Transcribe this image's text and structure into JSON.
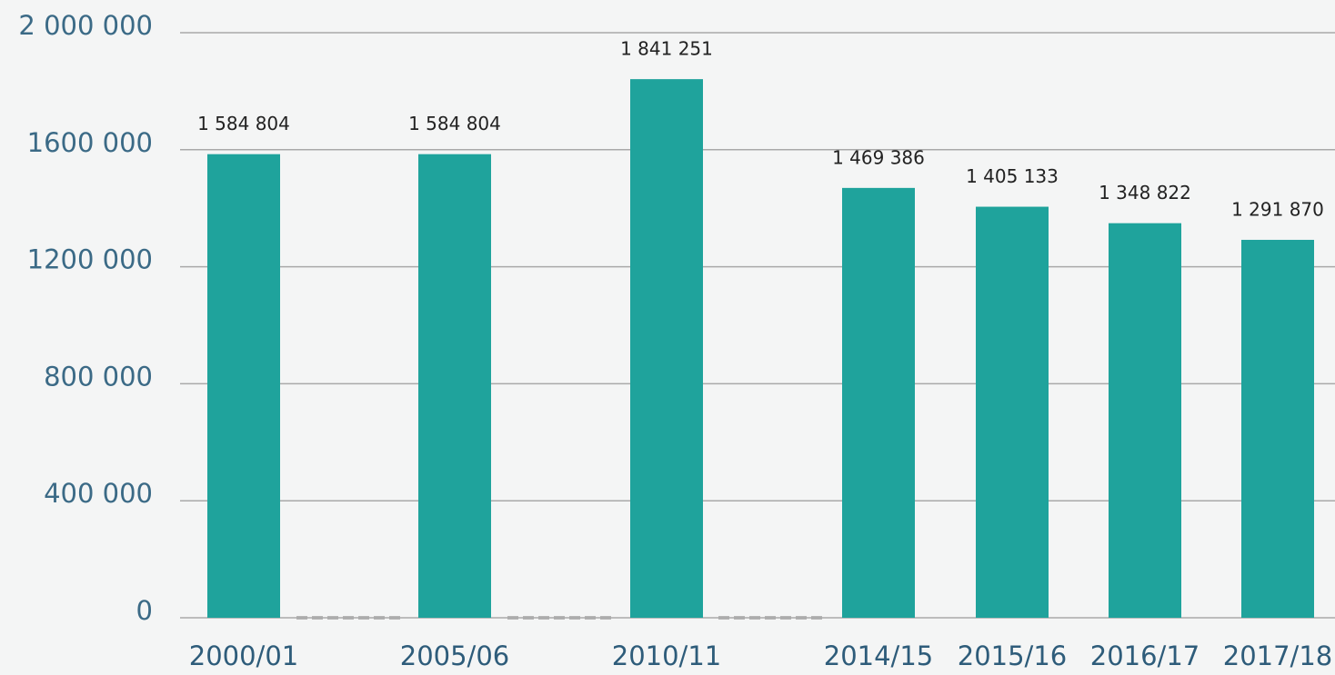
{
  "chart_data": {
    "type": "bar",
    "categories": [
      "2000/01",
      "2005/06",
      "2010/11",
      "2014/15",
      "2015/16",
      "2016/17",
      "2017/18"
    ],
    "values": [
      1584804,
      1584804,
      1841251,
      1469386,
      1405133,
      1348822,
      1291870
    ],
    "value_labels": [
      "1 584 804",
      "1 584 804",
      "1 841 251",
      "1 469 386",
      "1 405 133",
      "1 348 822",
      "1 291 870"
    ],
    "color": "#1fa39c",
    "ylim": [
      0,
      2000000
    ],
    "yticks": [
      0,
      {
        "value": 400000,
        "label": "400 000"
      },
      {
        "value": 800000,
        "label": "800 000"
      },
      {
        "value": 1200000,
        "label": "1200 000"
      },
      {
        "value": 1600000,
        "label": "1600 000"
      },
      {
        "value": 2000000,
        "label": "2 000 000"
      }
    ],
    "grid": true
  }
}
